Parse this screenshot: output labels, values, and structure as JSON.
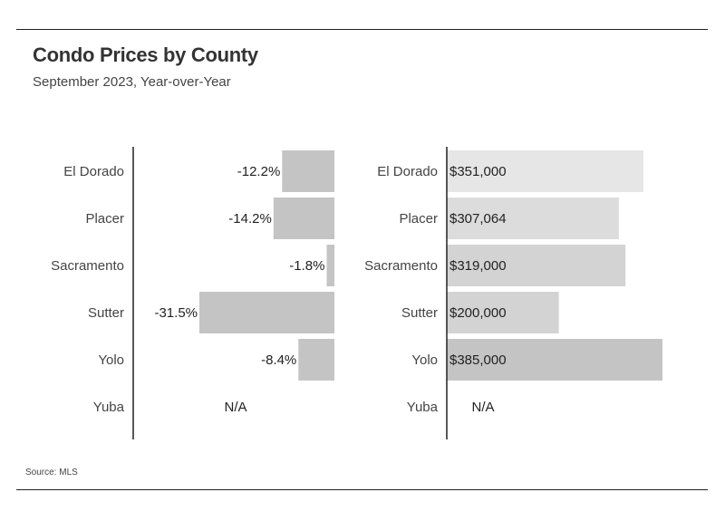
{
  "header": {
    "title": "Condo Prices by County",
    "subtitle": "September 2023, Year-over-Year"
  },
  "footer": {
    "source": "Source: MLS"
  },
  "colors": {
    "rule": "#222222",
    "axis": "#222222",
    "bar_change": "#c4c4c4",
    "bar_price": [
      "#e6e6e6",
      "#dcdcdc",
      "#d3d3d3",
      "#d3d3d3",
      "#c4c4c4"
    ],
    "label": "#444444",
    "value": "#222222"
  },
  "chart_data": [
    {
      "type": "bar",
      "orientation": "horizontal",
      "categories": [
        "El Dorado",
        "Placer",
        "Sacramento",
        "Sutter",
        "Yolo",
        "Yuba"
      ],
      "values": [
        -12.2,
        -14.2,
        -1.8,
        -31.5,
        -8.4,
        null
      ],
      "data_labels": [
        "-12.2%",
        "-14.2%",
        "-1.8%",
        "-31.5%",
        "-8.4%",
        "N/A"
      ],
      "xlim": [
        -31.5,
        0
      ],
      "grid": false,
      "legend": "none"
    },
    {
      "type": "bar",
      "orientation": "horizontal",
      "categories": [
        "El Dorado",
        "Placer",
        "Sacramento",
        "Sutter",
        "Yolo",
        "Yuba"
      ],
      "values": [
        351000,
        307064,
        319000,
        200000,
        385000,
        null
      ],
      "data_labels": [
        "$351,000",
        "$307,064",
        "$319,000",
        "$200,000",
        "$385,000",
        "N/A"
      ],
      "xlim": [
        0,
        385000
      ],
      "grid": false,
      "legend": "none"
    }
  ]
}
